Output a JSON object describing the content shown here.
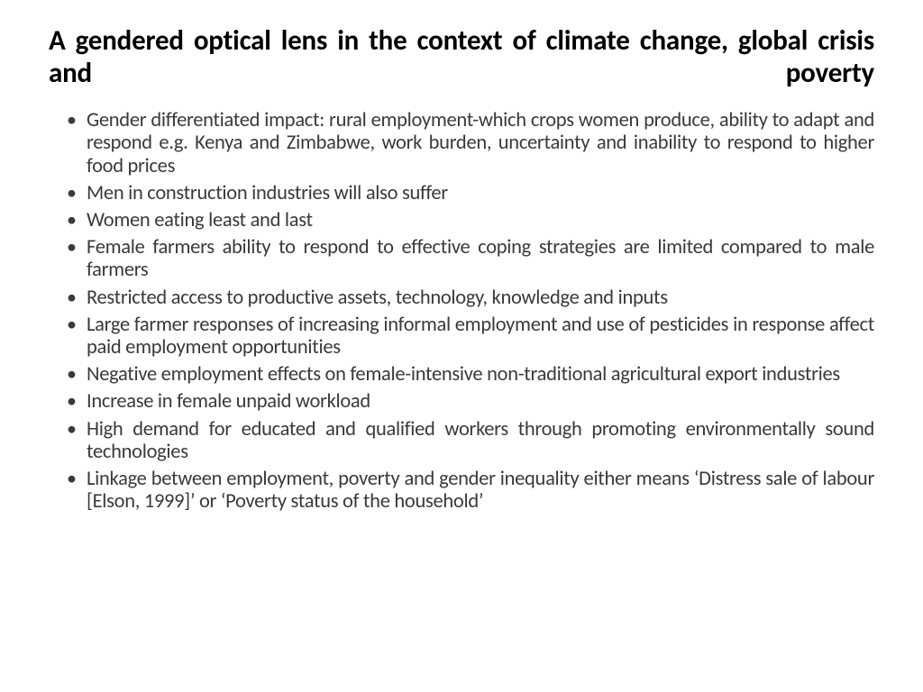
{
  "slide": {
    "title": "A gendered optical lens in the context of climate change, global crisis and poverty",
    "title_color": "#000000",
    "title_fontsize": 31,
    "body_color": "#3a3a3a",
    "body_fontsize": 22.5,
    "background_color": "#ffffff",
    "bullets": [
      "Gender differentiated impact: rural employment-which crops women produce, ability to adapt and respond e.g. Kenya and Zimbabwe, work burden, uncertainty and inability to respond to higher food prices",
      "Men in construction industries will also suffer",
      "Women eating least and last",
      "Female farmers ability to respond to effective coping strategies are limited compared to male farmers",
      "Restricted access to productive assets, technology, knowledge and inputs",
      "Large farmer responses of increasing informal employment and use of pesticides in response affect paid employment opportunities",
      "Negative employment effects on female-intensive non-traditional agricultural export industries",
      "Increase in female unpaid workload",
      "High demand for educated and qualified workers through promoting environmentally sound technologies",
      "Linkage between employment, poverty and gender inequality either means ‘Distress sale of labour [Elson, 1999]’ or ‘Poverty status of the household’"
    ]
  }
}
